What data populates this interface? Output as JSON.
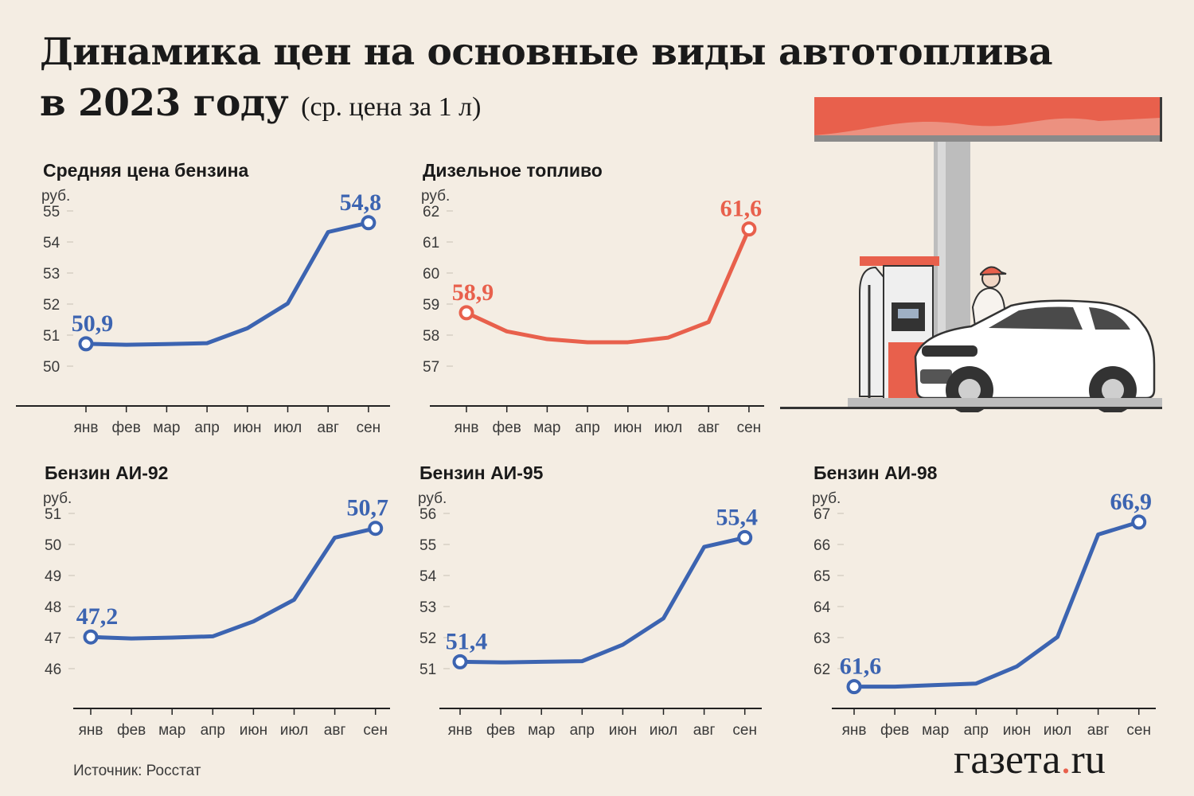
{
  "title": {
    "line1": "Динамика цен на основные виды автотоплива",
    "line2": "в 2023 году",
    "sub": "(ср. цена за 1 л)"
  },
  "source": "Источник: Росстат",
  "logo": {
    "name": "газета",
    "dot": ".",
    "tld": "ru"
  },
  "colors": {
    "blue": "#3c64b1",
    "red": "#e8604c",
    "background": "#f4ede3"
  },
  "chart_data": [
    {
      "type": "line",
      "title": "Средняя цена бензина",
      "ylabel": "руб.",
      "categories": [
        "янв",
        "фев",
        "мар",
        "апр",
        "июн",
        "июл",
        "авг",
        "сен"
      ],
      "values": [
        50.9,
        50.87,
        50.89,
        50.92,
        51.4,
        52.2,
        54.5,
        54.8
      ],
      "yticks": [
        55,
        54,
        53,
        52,
        51,
        50
      ],
      "ylim": [
        49,
        55.2
      ],
      "labels": {
        "first": "50,9",
        "last": "54,8"
      },
      "color": "#3c64b1"
    },
    {
      "type": "line",
      "title": "Дизельное топливо",
      "ylabel": "руб.",
      "categories": [
        "янв",
        "фев",
        "мар",
        "апр",
        "июн",
        "июл",
        "авг",
        "сен"
      ],
      "values": [
        58.9,
        58.3,
        58.05,
        57.95,
        57.95,
        58.1,
        58.6,
        61.6
      ],
      "yticks": [
        62,
        61,
        60,
        59,
        58,
        57
      ],
      "ylim": [
        56,
        62.2
      ],
      "labels": {
        "first": "58,9",
        "last": "61,6"
      },
      "color": "#e8604c"
    },
    {
      "type": "line",
      "title": "Бензин АИ-92",
      "ylabel": "руб.",
      "categories": [
        "янв",
        "фев",
        "мар",
        "апр",
        "июн",
        "июл",
        "авг",
        "сен"
      ],
      "values": [
        47.2,
        47.15,
        47.18,
        47.22,
        47.7,
        48.4,
        50.4,
        50.7
      ],
      "yticks": [
        51,
        50,
        49,
        48,
        47,
        46
      ],
      "ylim": [
        45,
        51.2
      ],
      "labels": {
        "first": "47,2",
        "last": "50,7"
      },
      "color": "#3c64b1"
    },
    {
      "type": "line",
      "title": "Бензин АИ-95",
      "ylabel": "руб.",
      "categories": [
        "янв",
        "фев",
        "мар",
        "апр",
        "июн",
        "июл",
        "авг",
        "сен"
      ],
      "values": [
        51.4,
        51.38,
        51.4,
        51.42,
        51.95,
        52.8,
        55.1,
        55.4
      ],
      "yticks": [
        56,
        55,
        54,
        53,
        52,
        51
      ],
      "ylim": [
        50,
        56.2
      ],
      "labels": {
        "first": "51,4",
        "last": "55,4"
      },
      "color": "#3c64b1"
    },
    {
      "type": "line",
      "title": "Бензин АИ-98",
      "ylabel": "руб.",
      "categories": [
        "янв",
        "фев",
        "мар",
        "апр",
        "июн",
        "июл",
        "авг",
        "сен"
      ],
      "values": [
        61.6,
        61.6,
        61.65,
        61.7,
        62.25,
        63.2,
        66.5,
        66.9
      ],
      "yticks": [
        67,
        66,
        65,
        64,
        63,
        62
      ],
      "ylim": [
        61,
        67.2
      ],
      "labels": {
        "first": "61,6",
        "last": "66,9"
      },
      "color": "#3c64b1"
    }
  ]
}
